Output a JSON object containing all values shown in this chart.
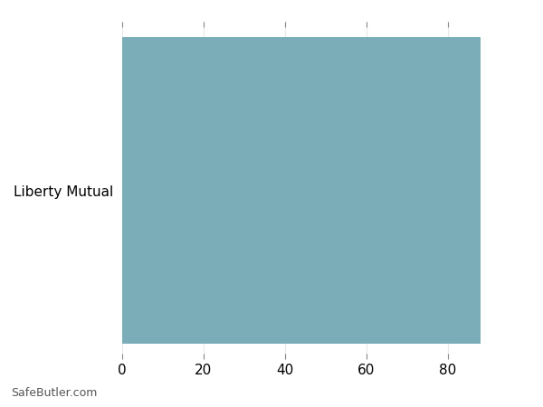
{
  "categories": [
    "Liberty Mutual"
  ],
  "values": [
    88
  ],
  "bar_color": "#7BADB8",
  "xlim": [
    0,
    100
  ],
  "xticks": [
    0,
    20,
    40,
    60,
    80
  ],
  "background_color": "#ffffff",
  "grid_color": "#e8e8e8",
  "watermark": "SafeButler.com",
  "bar_height": 0.95,
  "label_fontsize": 11,
  "watermark_fontsize": 9
}
